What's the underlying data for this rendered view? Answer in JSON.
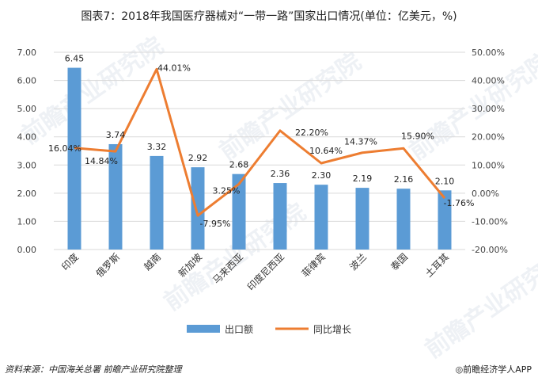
{
  "title": "图表7：2018年我国医疗器械对“一带一路”国家出口情况(单位：亿美元，%)",
  "source": "资料来源：中国海关总署 前瞻产业研究院整理",
  "brand": "◎前瞻经济学人APP",
  "watermark": "前瞻产业研究院",
  "colors": {
    "bar": "#5B9BD5",
    "line": "#ED7D31"
  },
  "chart_data": {
    "type": "bar",
    "categories": [
      "印度",
      "俄罗斯",
      "越南",
      "新加坡",
      "马来西亚",
      "印度尼西亚",
      "菲律宾",
      "波兰",
      "泰国",
      "土耳其"
    ],
    "series": [
      {
        "name": "出口额",
        "type": "bar",
        "axis": "left",
        "values": [
          6.45,
          3.74,
          3.32,
          2.92,
          2.68,
          2.36,
          2.3,
          2.19,
          2.16,
          2.1
        ],
        "labels": [
          "6.45",
          "3.74",
          "3.32",
          "2.92",
          "2.68",
          "2.36",
          "2.30",
          "2.19",
          "2.16",
          "2.10"
        ]
      },
      {
        "name": "同比增长",
        "type": "line",
        "axis": "right",
        "values": [
          16.04,
          14.84,
          44.01,
          -7.95,
          3.25,
          22.2,
          10.64,
          14.37,
          15.9,
          -1.76
        ],
        "labels": [
          "16.04%",
          "14.84%",
          "44.01%",
          "-7.95%",
          "3.25%",
          "22.20%",
          "10.64%",
          "14.37%",
          "15.90%",
          "-1.76%"
        ]
      }
    ],
    "y_left": {
      "min": 0,
      "max": 7,
      "step": 1,
      "ticks": [
        "0.00",
        "1.00",
        "2.00",
        "3.00",
        "4.00",
        "5.00",
        "6.00",
        "7.00"
      ]
    },
    "y_right": {
      "min": -20,
      "max": 50,
      "step": 10,
      "ticks": [
        "-20.00%",
        "-10.00%",
        "0.00%",
        "10.00%",
        "20.00%",
        "30.00%",
        "40.00%",
        "50.00%"
      ]
    },
    "grid": true,
    "legend_position": "bottom"
  }
}
